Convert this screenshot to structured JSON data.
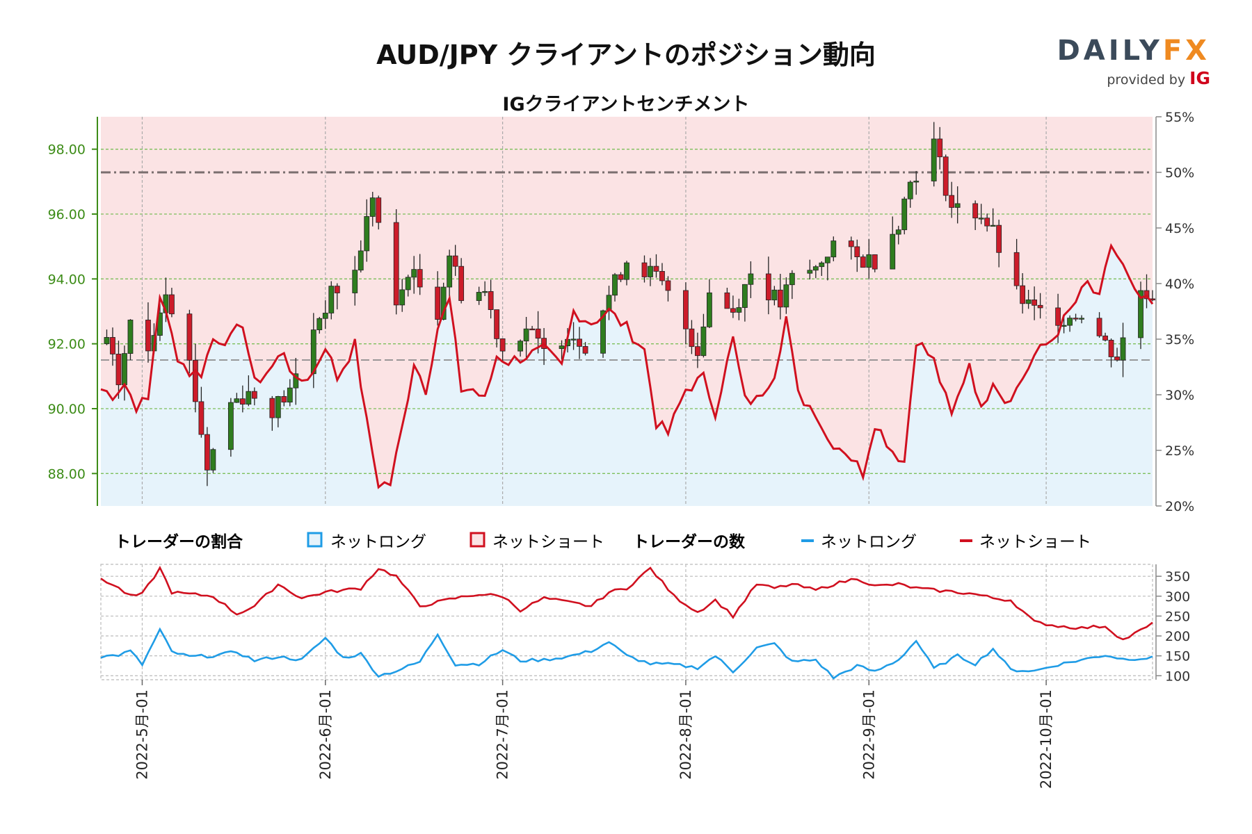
{
  "title": "AUD/JPY クライアントのポジション動向",
  "subtitle": "IGクライアントセンチメント",
  "logo": {
    "main": "DAILY",
    "accent": "FX",
    "provided_by": "provided by",
    "ig": "IG"
  },
  "legend": {
    "ratio_heading": "トレーダーの割合",
    "ratio_long": "ネットロング",
    "ratio_short": "ネットショート",
    "count_heading": "トレーダーの数",
    "count_long": "ネットロング",
    "count_short": "ネットショート"
  },
  "colors": {
    "long_line": "#1f9ce6",
    "short_line": "#d0101f",
    "long_fill": "#e6f3fb",
    "short_fill": "#fbe3e4",
    "candle_up": "#2f7d1f",
    "candle_down": "#cc1c2a",
    "price_axis": "#3d8c18",
    "grid": "#7cbf5a"
  },
  "chart_data": [
    {
      "type": "candlestick",
      "name": "price",
      "x_range": [
        "2022-04-24",
        "2022-10-19"
      ],
      "y_left_ticks": [
        "88.00",
        "90.00",
        "92.00",
        "94.00",
        "96.00",
        "98.00"
      ],
      "ylim_left": [
        87.0,
        99.0
      ],
      "y_right_ticks": [
        "20%",
        "25%",
        "30%",
        "35%",
        "40%",
        "45%",
        "50%",
        "55%"
      ],
      "ylim_right": [
        20,
        55
      ],
      "x_ticks": [
        "2022-5月-01",
        "2022-6月-01",
        "2022-7月-01",
        "2022-8月-01",
        "2022-9月-01",
        "2022-10月-01"
      ],
      "reference_lines": {
        "net_long_50pct": 50,
        "price_level": 91.5
      },
      "price_anchors": [
        [
          "2022-04-25",
          92.0
        ],
        [
          "2022-04-27",
          90.8
        ],
        [
          "2022-04-29",
          92.6
        ],
        [
          "2022-05-02",
          91.8
        ],
        [
          "2022-05-05",
          93.8
        ],
        [
          "2022-05-09",
          91.4
        ],
        [
          "2022-05-12",
          88.2
        ],
        [
          "2022-05-16",
          90.2
        ],
        [
          "2022-05-19",
          90.5
        ],
        [
          "2022-05-23",
          90.0
        ],
        [
          "2022-05-26",
          90.5
        ],
        [
          "2022-05-30",
          92.5
        ],
        [
          "2022-06-02",
          93.5
        ],
        [
          "2022-06-06",
          94.2
        ],
        [
          "2022-06-09",
          96.6
        ],
        [
          "2022-06-13",
          93.0
        ],
        [
          "2022-06-15",
          94.3
        ],
        [
          "2022-06-20",
          93.0
        ],
        [
          "2022-06-22",
          94.8
        ],
        [
          "2022-06-24",
          93.6
        ],
        [
          "2022-06-28",
          93.6
        ],
        [
          "2022-07-01",
          91.8
        ],
        [
          "2022-07-05",
          92.5
        ],
        [
          "2022-07-08",
          91.7
        ],
        [
          "2022-07-12",
          92.4
        ],
        [
          "2022-07-15",
          92.0
        ],
        [
          "2022-07-19",
          93.5
        ],
        [
          "2022-07-22",
          94.6
        ],
        [
          "2022-07-26",
          94.2
        ],
        [
          "2022-07-28",
          93.8
        ],
        [
          "2022-08-01",
          92.5
        ],
        [
          "2022-08-03",
          91.8
        ],
        [
          "2022-08-05",
          93.6
        ],
        [
          "2022-08-09",
          93.0
        ],
        [
          "2022-08-12",
          94.2
        ],
        [
          "2022-08-17",
          93.2
        ],
        [
          "2022-08-19",
          94.0
        ],
        [
          "2022-08-23",
          94.3
        ],
        [
          "2022-08-26",
          95.1
        ],
        [
          "2022-08-30",
          94.6
        ],
        [
          "2022-09-02",
          94.6
        ],
        [
          "2022-09-06",
          95.8
        ],
        [
          "2022-09-08",
          97.0
        ],
        [
          "2022-09-12",
          98.2
        ],
        [
          "2022-09-15",
          96.2
        ],
        [
          "2022-09-20",
          96.0
        ],
        [
          "2022-09-22",
          95.4
        ],
        [
          "2022-09-26",
          93.5
        ],
        [
          "2022-09-29",
          93.0
        ],
        [
          "2022-10-04",
          92.8
        ],
        [
          "2022-10-07",
          93.0
        ],
        [
          "2022-10-11",
          92.0
        ],
        [
          "2022-10-13",
          91.6
        ],
        [
          "2022-10-17",
          93.7
        ],
        [
          "2022-10-19",
          93.5
        ]
      ],
      "net_long_pct_anchors": [
        [
          "2022-04-24",
          30.5
        ],
        [
          "2022-04-26",
          30.0
        ],
        [
          "2022-04-28",
          31.0
        ],
        [
          "2022-04-30",
          29.0
        ],
        [
          "2022-05-02",
          29.5
        ],
        [
          "2022-05-04",
          39.0
        ],
        [
          "2022-05-07",
          33.5
        ],
        [
          "2022-05-09",
          32.0
        ],
        [
          "2022-05-11",
          32.0
        ],
        [
          "2022-05-13",
          35.0
        ],
        [
          "2022-05-16",
          35.0
        ],
        [
          "2022-05-18",
          36.5
        ],
        [
          "2022-05-20",
          31.0
        ],
        [
          "2022-05-23",
          32.5
        ],
        [
          "2022-05-25",
          34.0
        ],
        [
          "2022-05-27",
          31.0
        ],
        [
          "2022-05-30",
          32.0
        ],
        [
          "2022-06-01",
          34.5
        ],
        [
          "2022-06-03",
          31.5
        ],
        [
          "2022-06-06",
          34.5
        ],
        [
          "2022-06-08",
          27.5
        ],
        [
          "2022-06-10",
          22.0
        ],
        [
          "2022-06-12",
          22.0
        ],
        [
          "2022-06-14",
          27.0
        ],
        [
          "2022-06-16",
          33.0
        ],
        [
          "2022-06-18",
          30.5
        ],
        [
          "2022-06-20",
          36.0
        ],
        [
          "2022-06-22",
          38.5
        ],
        [
          "2022-06-24",
          30.5
        ],
        [
          "2022-06-26",
          30.5
        ],
        [
          "2022-06-28",
          29.5
        ],
        [
          "2022-06-30",
          33.5
        ],
        [
          "2022-07-02",
          33.0
        ],
        [
          "2022-07-05",
          33.5
        ],
        [
          "2022-07-08",
          34.0
        ],
        [
          "2022-07-11",
          32.5
        ],
        [
          "2022-07-13",
          37.5
        ],
        [
          "2022-07-16",
          36.5
        ],
        [
          "2022-07-19",
          37.5
        ],
        [
          "2022-07-22",
          36.0
        ],
        [
          "2022-07-25",
          34.0
        ],
        [
          "2022-07-27",
          27.5
        ],
        [
          "2022-07-29",
          26.5
        ],
        [
          "2022-08-01",
          30.5
        ],
        [
          "2022-08-04",
          31.5
        ],
        [
          "2022-08-06",
          28.5
        ],
        [
          "2022-08-09",
          35.0
        ],
        [
          "2022-08-11",
          29.5
        ],
        [
          "2022-08-13",
          29.5
        ],
        [
          "2022-08-16",
          32.0
        ],
        [
          "2022-08-18",
          37.0
        ],
        [
          "2022-08-20",
          30.0
        ],
        [
          "2022-08-23",
          28.5
        ],
        [
          "2022-08-25",
          26.0
        ],
        [
          "2022-08-28",
          25.0
        ],
        [
          "2022-08-31",
          23.0
        ],
        [
          "2022-09-02",
          27.5
        ],
        [
          "2022-09-05",
          25.0
        ],
        [
          "2022-09-07",
          24.0
        ],
        [
          "2022-09-09",
          35.0
        ],
        [
          "2022-09-12",
          33.0
        ],
        [
          "2022-09-15",
          28.0
        ],
        [
          "2022-09-18",
          33.0
        ],
        [
          "2022-09-20",
          28.5
        ],
        [
          "2022-09-22",
          31.5
        ],
        [
          "2022-09-24",
          29.5
        ],
        [
          "2022-09-26",
          30.5
        ],
        [
          "2022-09-29",
          33.5
        ],
        [
          "2022-10-02",
          35.0
        ],
        [
          "2022-10-05",
          37.5
        ],
        [
          "2022-10-08",
          40.0
        ],
        [
          "2022-10-10",
          38.5
        ],
        [
          "2022-10-12",
          43.5
        ],
        [
          "2022-10-14",
          41.5
        ],
        [
          "2022-10-16",
          39.0
        ],
        [
          "2022-10-19",
          38.0
        ]
      ]
    },
    {
      "type": "line",
      "name": "trader_counts",
      "y_ticks": [
        "100",
        "150",
        "200",
        "250",
        "300",
        "350"
      ],
      "ylim": [
        90,
        380
      ],
      "series": [
        {
          "name": "ネットロング",
          "anchors": [
            [
              "2022-04-24",
              148
            ],
            [
              "2022-04-27",
              152
            ],
            [
              "2022-04-29",
              162
            ],
            [
              "2022-05-01",
              128
            ],
            [
              "2022-05-04",
              215
            ],
            [
              "2022-05-06",
              160
            ],
            [
              "2022-05-09",
              148
            ],
            [
              "2022-05-13",
              150
            ],
            [
              "2022-05-17",
              160
            ],
            [
              "2022-05-20",
              138
            ],
            [
              "2022-05-24",
              148
            ],
            [
              "2022-05-28",
              140
            ],
            [
              "2022-06-01",
              195
            ],
            [
              "2022-06-04",
              145
            ],
            [
              "2022-06-07",
              155
            ],
            [
              "2022-06-10",
              100
            ],
            [
              "2022-06-13",
              112
            ],
            [
              "2022-06-17",
              135
            ],
            [
              "2022-06-20",
              205
            ],
            [
              "2022-06-23",
              128
            ],
            [
              "2022-06-27",
              130
            ],
            [
              "2022-07-01",
              165
            ],
            [
              "2022-07-04",
              138
            ],
            [
              "2022-07-08",
              140
            ],
            [
              "2022-07-12",
              148
            ],
            [
              "2022-07-16",
              162
            ],
            [
              "2022-07-19",
              185
            ],
            [
              "2022-07-22",
              150
            ],
            [
              "2022-07-26",
              130
            ],
            [
              "2022-07-30",
              128
            ],
            [
              "2022-08-03",
              120
            ],
            [
              "2022-08-06",
              150
            ],
            [
              "2022-08-09",
              110
            ],
            [
              "2022-08-13",
              170
            ],
            [
              "2022-08-16",
              180
            ],
            [
              "2022-08-19",
              135
            ],
            [
              "2022-08-23",
              140
            ],
            [
              "2022-08-26",
              95
            ],
            [
              "2022-08-30",
              125
            ],
            [
              "2022-09-02",
              110
            ],
            [
              "2022-09-06",
              140
            ],
            [
              "2022-09-09",
              188
            ],
            [
              "2022-09-12",
              118
            ],
            [
              "2022-09-16",
              150
            ],
            [
              "2022-09-19",
              130
            ],
            [
              "2022-09-22",
              168
            ],
            [
              "2022-09-25",
              115
            ],
            [
              "2022-09-29",
              112
            ],
            [
              "2022-10-03",
              128
            ],
            [
              "2022-10-07",
              140
            ],
            [
              "2022-10-11",
              152
            ],
            [
              "2022-10-14",
              142
            ],
            [
              "2022-10-19",
              145
            ]
          ]
        },
        {
          "name": "ネットショート",
          "anchors": [
            [
              "2022-04-24",
              345
            ],
            [
              "2022-04-27",
              320
            ],
            [
              "2022-04-29",
              300
            ],
            [
              "2022-05-01",
              305
            ],
            [
              "2022-05-04",
              370
            ],
            [
              "2022-05-06",
              310
            ],
            [
              "2022-05-09",
              305
            ],
            [
              "2022-05-13",
              300
            ],
            [
              "2022-05-17",
              255
            ],
            [
              "2022-05-20",
              275
            ],
            [
              "2022-05-24",
              330
            ],
            [
              "2022-05-28",
              295
            ],
            [
              "2022-06-01",
              310
            ],
            [
              "2022-06-04",
              315
            ],
            [
              "2022-06-07",
              320
            ],
            [
              "2022-06-10",
              370
            ],
            [
              "2022-06-13",
              350
            ],
            [
              "2022-06-17",
              275
            ],
            [
              "2022-06-20",
              285
            ],
            [
              "2022-06-23",
              295
            ],
            [
              "2022-06-27",
              305
            ],
            [
              "2022-07-01",
              300
            ],
            [
              "2022-07-04",
              265
            ],
            [
              "2022-07-08",
              295
            ],
            [
              "2022-07-12",
              285
            ],
            [
              "2022-07-16",
              275
            ],
            [
              "2022-07-19",
              310
            ],
            [
              "2022-07-22",
              320
            ],
            [
              "2022-07-26",
              370
            ],
            [
              "2022-07-30",
              300
            ],
            [
              "2022-08-03",
              260
            ],
            [
              "2022-08-06",
              290
            ],
            [
              "2022-08-09",
              250
            ],
            [
              "2022-08-13",
              330
            ],
            [
              "2022-08-16",
              320
            ],
            [
              "2022-08-19",
              330
            ],
            [
              "2022-08-23",
              315
            ],
            [
              "2022-08-26",
              330
            ],
            [
              "2022-08-30",
              345
            ],
            [
              "2022-09-02",
              325
            ],
            [
              "2022-09-06",
              330
            ],
            [
              "2022-09-09",
              320
            ],
            [
              "2022-09-12",
              315
            ],
            [
              "2022-09-16",
              310
            ],
            [
              "2022-09-19",
              305
            ],
            [
              "2022-09-22",
              295
            ],
            [
              "2022-09-25",
              290
            ],
            [
              "2022-09-29",
              235
            ],
            [
              "2022-10-03",
              225
            ],
            [
              "2022-10-07",
              220
            ],
            [
              "2022-10-11",
              225
            ],
            [
              "2022-10-14",
              190
            ],
            [
              "2022-10-19",
              230
            ]
          ]
        }
      ]
    }
  ]
}
